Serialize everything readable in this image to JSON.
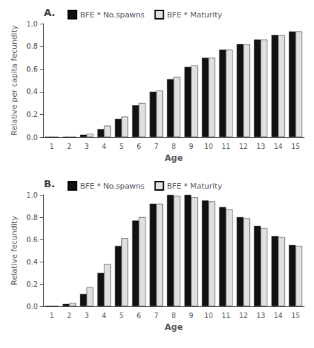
{
  "chart_data": [
    {
      "type": "bar",
      "title": "A.",
      "xlabel": "Age",
      "ylabel": "Relative per capita fecundity",
      "categories": [
        1,
        2,
        3,
        4,
        5,
        6,
        7,
        8,
        9,
        10,
        11,
        12,
        13,
        14,
        15
      ],
      "series": [
        {
          "name": "BFE * No.spawns",
          "color": "#111111",
          "values": [
            0.0,
            0.0,
            0.02,
            0.07,
            0.16,
            0.28,
            0.4,
            0.51,
            0.62,
            0.7,
            0.77,
            0.82,
            0.86,
            0.9,
            0.93
          ]
        },
        {
          "name": "BFE * Maturity",
          "color": "#e0e0e0",
          "values": [
            0.0,
            0.0,
            0.03,
            0.1,
            0.18,
            0.3,
            0.41,
            0.53,
            0.63,
            0.7,
            0.77,
            0.82,
            0.86,
            0.9,
            0.93
          ]
        }
      ],
      "ylim": [
        0,
        1.0
      ],
      "yticks": [
        {
          "value": 0.0,
          "label": "0.0"
        },
        0.2,
        0.4,
        0.6,
        0.8,
        {
          "value": 1.0,
          "label": "1.0"
        }
      ],
      "grid": false,
      "legend": "upper left"
    },
    {
      "type": "bar",
      "title": "B.",
      "xlabel": "Age",
      "ylabel": "Relative fecundity",
      "categories": [
        1,
        2,
        3,
        4,
        5,
        6,
        7,
        8,
        9,
        10,
        11,
        12,
        13,
        14,
        15
      ],
      "series": [
        {
          "name": "BFE * No.spawns",
          "color": "#111111",
          "values": [
            0.0,
            0.02,
            0.11,
            0.3,
            0.54,
            0.77,
            0.92,
            1.0,
            1.0,
            0.95,
            0.89,
            0.8,
            0.72,
            0.63,
            0.55
          ]
        },
        {
          "name": "BFE * Maturity",
          "color": "#e0e0e0",
          "values": [
            0.0,
            0.03,
            0.17,
            0.38,
            0.61,
            0.8,
            0.92,
            0.99,
            0.98,
            0.94,
            0.87,
            0.79,
            0.7,
            0.62,
            0.54
          ]
        }
      ],
      "ylim": [
        0,
        1.0
      ],
      "yticks": [
        {
          "value": 0.0,
          "label": "0.0"
        },
        0.2,
        0.4,
        0.6,
        0.8,
        {
          "value": 1.0,
          "label": "1.0"
        }
      ],
      "grid": false,
      "legend": "upper left"
    }
  ]
}
